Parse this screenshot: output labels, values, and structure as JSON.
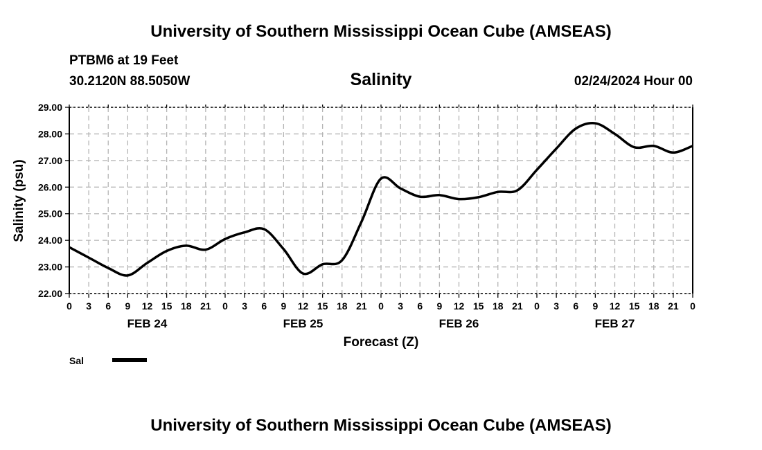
{
  "header": {
    "title": "University of Southern Mississippi Ocean Cube (AMSEAS)",
    "station": "PTBM6 at 19 Feet",
    "coords": "30.2120N  88.5050W",
    "date": "02/24/2024 Hour 00"
  },
  "footer": {
    "title": "University of Southern Mississippi Ocean Cube (AMSEAS)"
  },
  "chart_data": {
    "type": "line",
    "title": "Salinity",
    "xlabel": "Forecast (Z)",
    "ylabel": "Salinity (psu)",
    "ylim": [
      22,
      29
    ],
    "xlim": [
      0,
      96
    ],
    "grid": true,
    "yticks": [
      "22.00",
      "23.00",
      "24.00",
      "25.00",
      "26.00",
      "27.00",
      "28.00",
      "29.00"
    ],
    "xtick_labels": [
      "0",
      "3",
      "6",
      "9",
      "12",
      "15",
      "18",
      "21",
      "0",
      "3",
      "6",
      "9",
      "12",
      "15",
      "18",
      "21",
      "0",
      "3",
      "6",
      "9",
      "12",
      "15",
      "18",
      "21",
      "0",
      "3",
      "6",
      "9",
      "12",
      "15",
      "18",
      "21",
      "0"
    ],
    "day_labels": [
      "FEB 24",
      "FEB 25",
      "FEB 26",
      "FEB 27"
    ],
    "legend": {
      "placement": "bottom-left",
      "entries": [
        {
          "name": "Sal",
          "color": "#000000"
        }
      ]
    },
    "series": [
      {
        "name": "Sal",
        "x": [
          0,
          3,
          6,
          9,
          12,
          15,
          18,
          21,
          24,
          27,
          30,
          33,
          36,
          39,
          42,
          45,
          48,
          51,
          54,
          57,
          60,
          63,
          66,
          69,
          72,
          75,
          78,
          81,
          84,
          87,
          90,
          93,
          96
        ],
        "values": [
          23.74,
          23.35,
          22.96,
          22.68,
          23.15,
          23.6,
          23.8,
          23.65,
          24.05,
          24.3,
          24.42,
          23.67,
          22.75,
          23.1,
          23.25,
          24.7,
          26.32,
          25.95,
          25.64,
          25.7,
          25.55,
          25.62,
          25.82,
          25.88,
          26.65,
          27.45,
          28.2,
          28.4,
          28.0,
          27.5,
          27.55,
          27.3,
          27.55
        ]
      }
    ]
  }
}
